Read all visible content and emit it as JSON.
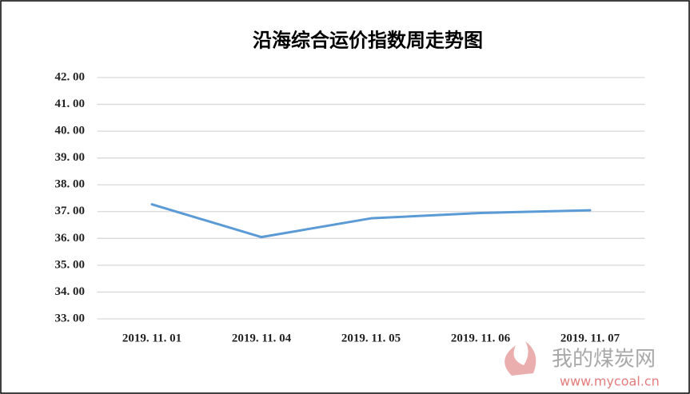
{
  "chart_data": {
    "type": "line",
    "title": "沿海综合运价指数周走势图",
    "categories": [
      "2019. 11. 01",
      "2019. 11. 04",
      "2019. 11. 05",
      "2019. 11. 06",
      "2019. 11. 07"
    ],
    "series": [
      {
        "name": "沿海综合运价指数",
        "color": "#5b9bd5",
        "values": [
          37.27,
          36.05,
          36.75,
          36.95,
          37.05
        ]
      }
    ],
    "ylim": [
      33,
      42
    ],
    "yticks": [
      {
        "value": 33,
        "label": "33. 00"
      },
      {
        "value": 34,
        "label": "34. 00"
      },
      {
        "value": 35,
        "label": "35. 00"
      },
      {
        "value": 36,
        "label": "36. 00"
      },
      {
        "value": 37,
        "label": "37. 00"
      },
      {
        "value": 38,
        "label": "38. 00"
      },
      {
        "value": 39,
        "label": "39. 00"
      },
      {
        "value": 40,
        "label": "40. 00"
      },
      {
        "value": 41,
        "label": "41. 00"
      },
      {
        "value": 42,
        "label": "42. 00"
      }
    ],
    "grid": true,
    "watermark": {
      "name": "我的煤炭网",
      "url": "www.mycoal.cn"
    }
  }
}
